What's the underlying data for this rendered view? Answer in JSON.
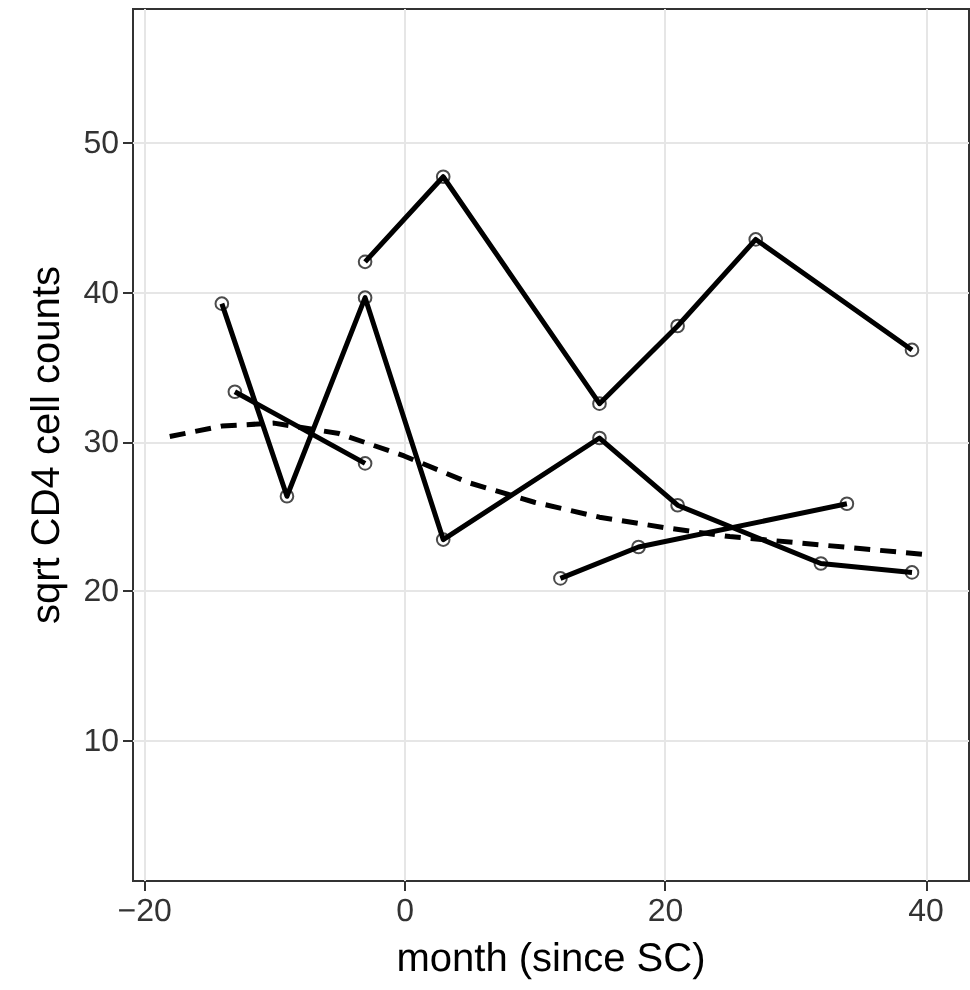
{
  "chart_data": {
    "type": "line",
    "xlabel": "month (since SC)",
    "ylabel": "sqrt CD4 cell counts",
    "xlim": [
      -20.9,
      43.3
    ],
    "ylim": [
      0.6,
      59
    ],
    "xticks": [
      -20,
      0,
      20,
      40
    ],
    "yticks": [
      10,
      20,
      30,
      40,
      50
    ],
    "grid": true,
    "marker": "circle",
    "line_style": "solid",
    "series": [
      {
        "color": "#000000",
        "x": [
          -3,
          3,
          15,
          21,
          27,
          39
        ],
        "values": [
          42,
          47.7,
          32.5,
          37.7,
          43.5,
          36.1
        ]
      },
      {
        "color": "#000000",
        "x": [
          -14,
          -9,
          -3,
          3,
          15,
          21,
          32,
          39
        ],
        "values": [
          39.2,
          26.3,
          39.6,
          23.4,
          30.2,
          25.7,
          21.8,
          21.2
        ]
      },
      {
        "color": "#000000",
        "x": [
          -13,
          -3
        ],
        "values": [
          33.3,
          28.5
        ]
      },
      {
        "color": "#000000",
        "x": [
          12,
          18,
          34
        ],
        "values": [
          20.8,
          22.9,
          25.8
        ]
      },
      {
        "color": "#000000",
        "marker": "none",
        "line_style": "dashed",
        "x": [
          -18,
          -14,
          -10,
          -5,
          0,
          5,
          10,
          15,
          20,
          25,
          30,
          35,
          40
        ],
        "values": [
          30.3,
          31,
          31.2,
          30.5,
          29,
          27.2,
          25.9,
          24.9,
          24.2,
          23.6,
          23.2,
          22.8,
          22.4
        ]
      }
    ]
  }
}
